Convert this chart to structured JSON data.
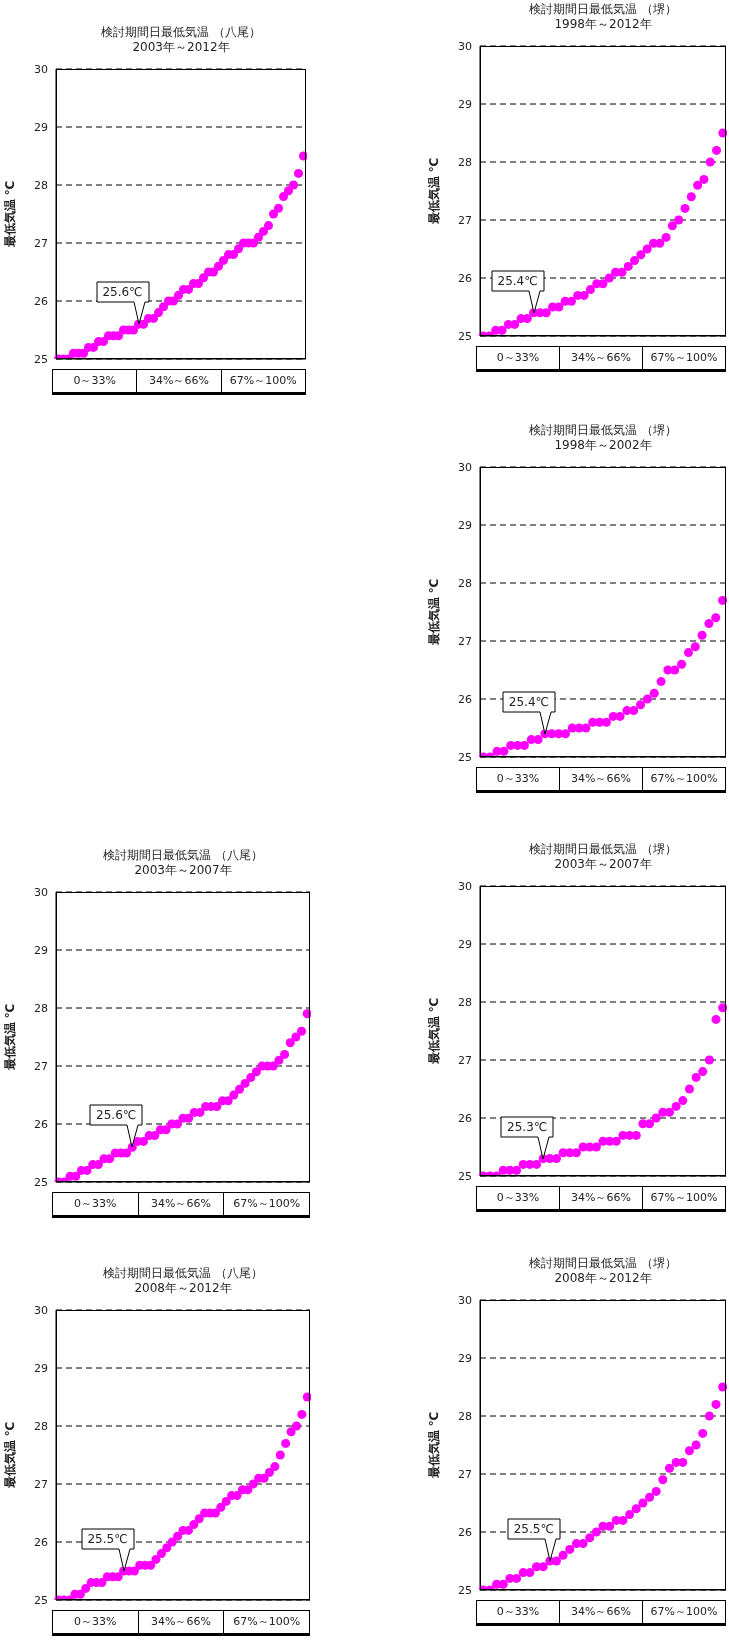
{
  "chart_data": [
    {
      "type": "scatter",
      "title": "検討期間日最低気温 （八尾）",
      "subtitle": "2003年～2012年",
      "ylabel": "最低気温 ℃",
      "categories": [
        null,
        null,
        null,
        null,
        null,
        null,
        null,
        null,
        null,
        null,
        null,
        null,
        null,
        null,
        null,
        null,
        null,
        null,
        null,
        null,
        null,
        null,
        null,
        null,
        null,
        null,
        null,
        null,
        null,
        null,
        null,
        null,
        null,
        null,
        null,
        null,
        null,
        null,
        null,
        null,
        null,
        null,
        null,
        null,
        null,
        null,
        null,
        null,
        null,
        null
      ],
      "series": [
        {
          "color": "#ff00ff",
          "values": [
            25.0,
            25.0,
            25.0,
            25.1,
            25.1,
            25.1,
            25.2,
            25.2,
            25.3,
            25.3,
            25.4,
            25.4,
            25.4,
            25.5,
            25.5,
            25.5,
            25.6,
            25.6,
            25.7,
            25.7,
            25.8,
            25.9,
            26.0,
            26.0,
            26.1,
            26.2,
            26.2,
            26.3,
            26.3,
            26.4,
            26.5,
            26.5,
            26.6,
            26.7,
            26.8,
            26.8,
            26.9,
            27.0,
            27.0,
            27.0,
            27.1,
            27.2,
            27.3,
            27.5,
            27.6,
            27.8,
            27.9,
            28.0,
            28.2,
            28.5
          ]
        }
      ],
      "ylim": [
        25,
        30
      ],
      "yticks": [
        25,
        26,
        27,
        28,
        29,
        30
      ],
      "grid": "y",
      "marker": "circle",
      "annotations": [
        "0～33%",
        "34%～66%",
        "67%～100%",
        {
          "text": "25.6℃",
          "y": 25.6
        }
      ]
    },
    {
      "type": "scatter",
      "title": "検討期間日最低気温 （堺）",
      "subtitle": "1998年～2012年",
      "ylabel": "最低気温 ℃",
      "categories": [
        null,
        null,
        null,
        null,
        null,
        null,
        null,
        null,
        null,
        null,
        null,
        null,
        null,
        null,
        null,
        null,
        null,
        null,
        null,
        null,
        null,
        null,
        null,
        null,
        null,
        null,
        null,
        null,
        null,
        null,
        null,
        null,
        null,
        null,
        null,
        null,
        null,
        null,
        null
      ],
      "series": [
        {
          "color": "#ff00ff",
          "values": [
            25.0,
            25.0,
            25.1,
            25.1,
            25.2,
            25.2,
            25.3,
            25.3,
            25.4,
            25.4,
            25.4,
            25.5,
            25.5,
            25.6,
            25.6,
            25.7,
            25.7,
            25.8,
            25.9,
            25.9,
            26.0,
            26.1,
            26.1,
            26.2,
            26.3,
            26.4,
            26.5,
            26.6,
            26.6,
            26.7,
            26.9,
            27.0,
            27.2,
            27.4,
            27.6,
            27.7,
            28.0,
            28.2,
            28.5
          ]
        }
      ],
      "ylim": [
        25,
        30
      ],
      "yticks": [
        25,
        26,
        27,
        28,
        29,
        30
      ],
      "grid": "y",
      "marker": "circle",
      "annotations": [
        "0～33%",
        "34%～66%",
        "67%～100%",
        {
          "text": "25.4℃",
          "y": 25.4
        }
      ]
    },
    {
      "type": "scatter",
      "title": "検討期間日最低気温 （堺）",
      "subtitle": "1998年～2002年",
      "ylabel": "最低気温 ℃",
      "categories": [
        null,
        null,
        null,
        null,
        null,
        null,
        null,
        null,
        null,
        null,
        null,
        null,
        null,
        null,
        null,
        null,
        null,
        null,
        null,
        null,
        null,
        null,
        null,
        null,
        null,
        null,
        null,
        null,
        null,
        null,
        null,
        null,
        null,
        null,
        null,
        null
      ],
      "series": [
        {
          "color": "#ff00ff",
          "values": [
            25.0,
            25.0,
            25.1,
            25.1,
            25.2,
            25.2,
            25.2,
            25.3,
            25.3,
            25.4,
            25.4,
            25.4,
            25.4,
            25.5,
            25.5,
            25.5,
            25.6,
            25.6,
            25.6,
            25.7,
            25.7,
            25.8,
            25.8,
            25.9,
            26.0,
            26.1,
            26.3,
            26.5,
            26.5,
            26.6,
            26.8,
            26.9,
            27.1,
            27.3,
            27.4,
            27.7
          ]
        }
      ],
      "ylim": [
        25,
        30
      ],
      "yticks": [
        25,
        26,
        27,
        28,
        29,
        30
      ],
      "grid": "y",
      "marker": "circle",
      "annotations": [
        "0～33%",
        "34%～66%",
        "67%～100%",
        {
          "text": "25.4℃",
          "y": 25.4
        }
      ]
    },
    {
      "type": "scatter",
      "title": "検討期間日最低気温 （八尾）",
      "subtitle": "2003年～2007年",
      "ylabel": "最低気温 ℃",
      "categories": [
        null,
        null,
        null,
        null,
        null,
        null,
        null,
        null,
        null,
        null,
        null,
        null,
        null,
        null,
        null,
        null,
        null,
        null,
        null,
        null,
        null,
        null,
        null,
        null,
        null,
        null,
        null,
        null,
        null,
        null,
        null,
        null,
        null,
        null,
        null,
        null,
        null,
        null,
        null,
        null,
        null,
        null,
        null,
        null,
        null
      ],
      "series": [
        {
          "color": "#ff00ff",
          "values": [
            25.0,
            25.0,
            25.1,
            25.1,
            25.2,
            25.2,
            25.3,
            25.3,
            25.4,
            25.4,
            25.5,
            25.5,
            25.5,
            25.6,
            25.7,
            25.7,
            25.8,
            25.8,
            25.9,
            25.9,
            26.0,
            26.0,
            26.1,
            26.1,
            26.2,
            26.2,
            26.3,
            26.3,
            26.3,
            26.4,
            26.4,
            26.5,
            26.6,
            26.7,
            26.8,
            26.9,
            27.0,
            27.0,
            27.0,
            27.1,
            27.2,
            27.4,
            27.5,
            27.6,
            27.9
          ]
        }
      ],
      "ylim": [
        25,
        30
      ],
      "yticks": [
        25,
        26,
        27,
        28,
        29,
        30
      ],
      "grid": "y",
      "marker": "circle",
      "annotations": [
        "0～33%",
        "34%～66%",
        "67%～100%",
        {
          "text": "25.6℃",
          "y": 25.6
        }
      ]
    },
    {
      "type": "scatter",
      "title": "検討期間日最低気温 （堺）",
      "subtitle": "2003年～2007年",
      "ylabel": "最低気温 ℃",
      "categories": [
        null,
        null,
        null,
        null,
        null,
        null,
        null,
        null,
        null,
        null,
        null,
        null,
        null,
        null,
        null,
        null,
        null,
        null,
        null,
        null,
        null,
        null,
        null,
        null,
        null,
        null,
        null,
        null,
        null,
        null,
        null,
        null,
        null,
        null,
        null,
        null,
        null
      ],
      "series": [
        {
          "color": "#ff00ff",
          "values": [
            25.0,
            25.0,
            25.0,
            25.1,
            25.1,
            25.1,
            25.2,
            25.2,
            25.2,
            25.3,
            25.3,
            25.3,
            25.4,
            25.4,
            25.4,
            25.5,
            25.5,
            25.5,
            25.6,
            25.6,
            25.6,
            25.7,
            25.7,
            25.7,
            25.9,
            25.9,
            26.0,
            26.1,
            26.1,
            26.2,
            26.3,
            26.5,
            26.7,
            26.8,
            27.0,
            27.7,
            27.9
          ]
        }
      ],
      "ylim": [
        25,
        30
      ],
      "yticks": [
        25,
        26,
        27,
        28,
        29,
        30
      ],
      "grid": "y",
      "marker": "circle",
      "annotations": [
        "0～33%",
        "34%～66%",
        "67%～100%",
        {
          "text": "25.3℃",
          "y": 25.3
        }
      ]
    },
    {
      "type": "scatter",
      "title": "検討期間日最低気温 （八尾）",
      "subtitle": "2008年～2012年",
      "ylabel": "最低気温 ℃",
      "categories": [
        null,
        null,
        null,
        null,
        null,
        null,
        null,
        null,
        null,
        null,
        null,
        null,
        null,
        null,
        null,
        null,
        null,
        null,
        null,
        null,
        null,
        null,
        null,
        null,
        null,
        null,
        null,
        null,
        null,
        null,
        null,
        null,
        null,
        null,
        null,
        null,
        null,
        null,
        null,
        null,
        null,
        null,
        null,
        null,
        null,
        null,
        null
      ],
      "series": [
        {
          "color": "#ff00ff",
          "values": [
            25.0,
            25.0,
            25.0,
            25.1,
            25.1,
            25.2,
            25.3,
            25.3,
            25.3,
            25.4,
            25.4,
            25.4,
            25.5,
            25.5,
            25.5,
            25.6,
            25.6,
            25.6,
            25.7,
            25.8,
            25.9,
            26.0,
            26.1,
            26.2,
            26.2,
            26.3,
            26.4,
            26.5,
            26.5,
            26.5,
            26.6,
            26.7,
            26.8,
            26.8,
            26.9,
            26.9,
            27.0,
            27.1,
            27.1,
            27.2,
            27.3,
            27.5,
            27.7,
            27.9,
            28.0,
            28.2,
            28.5
          ]
        }
      ],
      "ylim": [
        25,
        30
      ],
      "yticks": [
        25,
        26,
        27,
        28,
        29,
        30
      ],
      "grid": "y",
      "marker": "circle",
      "annotations": [
        "0～33%",
        "34%～66%",
        "67%～100%",
        {
          "text": "25.5℃",
          "y": 25.5
        }
      ]
    },
    {
      "type": "scatter",
      "title": "検討期間日最低気温 （堺）",
      "subtitle": "2008年～2012年",
      "ylabel": "最低気温 ℃",
      "categories": [
        null,
        null,
        null,
        null,
        null,
        null,
        null,
        null,
        null,
        null,
        null,
        null,
        null,
        null,
        null,
        null,
        null,
        null,
        null,
        null,
        null,
        null,
        null,
        null,
        null,
        null,
        null,
        null,
        null,
        null,
        null,
        null,
        null,
        null,
        null,
        null,
        null
      ],
      "series": [
        {
          "color": "#ff00ff",
          "values": [
            25.0,
            25.0,
            25.1,
            25.1,
            25.2,
            25.2,
            25.3,
            25.3,
            25.4,
            25.4,
            25.5,
            25.5,
            25.6,
            25.7,
            25.8,
            25.8,
            25.9,
            26.0,
            26.1,
            26.1,
            26.2,
            26.2,
            26.3,
            26.4,
            26.5,
            26.6,
            26.7,
            26.9,
            27.1,
            27.2,
            27.2,
            27.4,
            27.5,
            27.7,
            28.0,
            28.2,
            28.5
          ]
        }
      ],
      "ylim": [
        25,
        30
      ],
      "yticks": [
        25,
        26,
        27,
        28,
        29,
        30
      ],
      "grid": "y",
      "marker": "circle",
      "annotations": [
        "0～33%",
        "34%～66%",
        "67%～100%",
        {
          "text": "25.5℃",
          "y": 25.5
        }
      ]
    }
  ]
}
